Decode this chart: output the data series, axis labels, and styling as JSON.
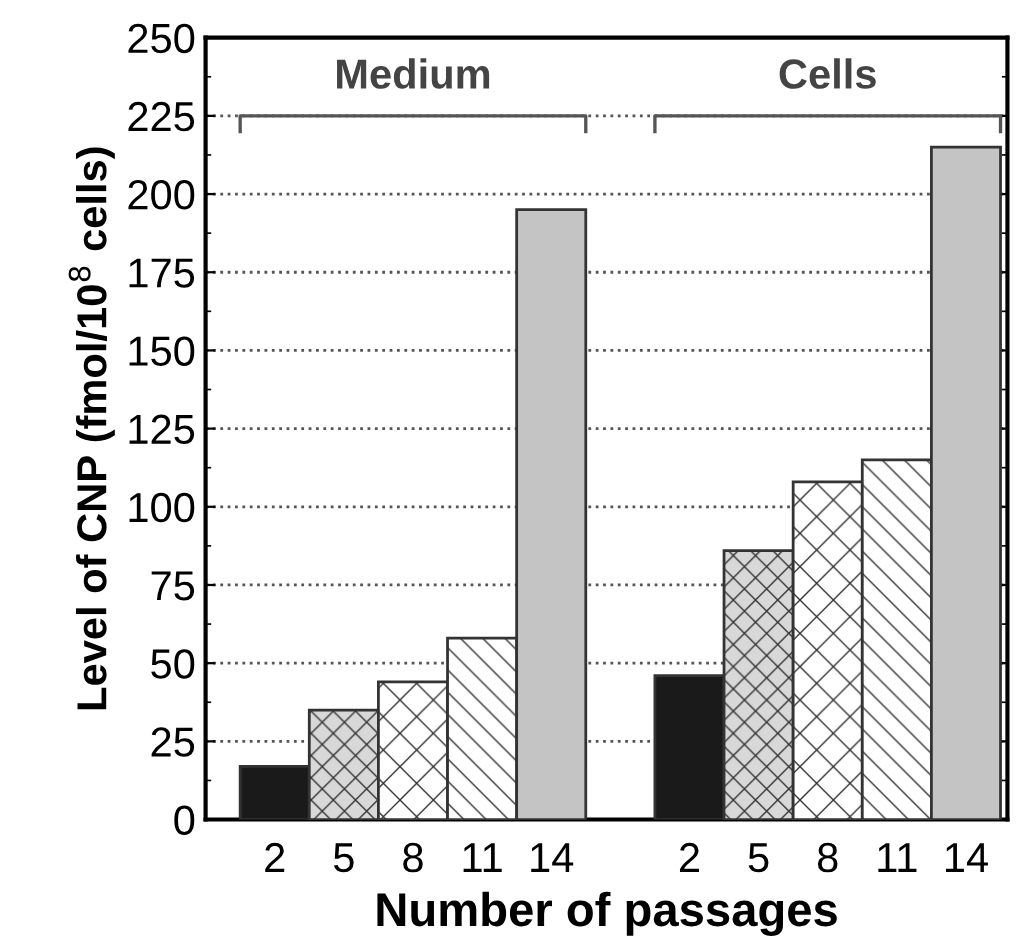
{
  "chart_data": {
    "type": "bar",
    "xlabel": "Number of passages",
    "ylabel": "Level of CNP (fmol/10$^{8}$ cells)",
    "categories": [
      "2",
      "5",
      "8",
      "11",
      "14",
      null,
      "2",
      "5",
      "8",
      "11",
      "14"
    ],
    "values": [
      17,
      35,
      44,
      58,
      195,
      null,
      46,
      86,
      108,
      115,
      215
    ],
    "colors": [
      "#1a1a1a",
      "#d8d8d8",
      "#ffffff",
      "#ffffff",
      "#c4c4c4",
      null,
      "#1a1a1a",
      "#d8d8d8",
      "#ffffff",
      "#ffffff",
      "#c4c4c4"
    ],
    "ylim": [
      0,
      250
    ],
    "yticks": [
      0,
      25,
      50,
      75,
      100,
      125,
      150,
      175,
      200,
      225,
      250
    ],
    "grid": "y",
    "annotations": [
      "Medium",
      "Cells"
    ]
  }
}
